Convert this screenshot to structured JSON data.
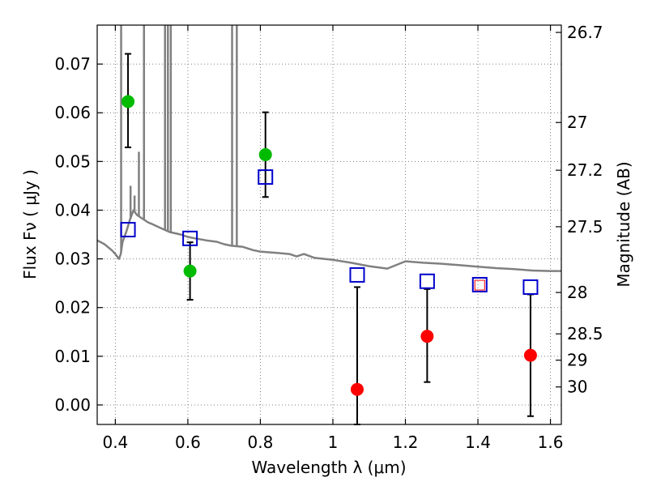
{
  "chart_data": {
    "type": "scatter",
    "title": "",
    "xlabel": "Wavelength  λ (μm)",
    "ylabel": "Flux  Fν  ( μJy )",
    "ylabel_right": "Magnitude (AB)",
    "xlim": [
      0.35,
      1.63
    ],
    "ylim": [
      -0.004,
      0.078
    ],
    "x_ticks": [
      0.4,
      0.6,
      0.8,
      1.0,
      1.2,
      1.4,
      1.6
    ],
    "x_tick_labels": [
      "0.4",
      "0.6",
      "0.8",
      "1",
      "1.2",
      "1.4",
      "1.6"
    ],
    "y_ticks": [
      0.0,
      0.01,
      0.02,
      0.03,
      0.04,
      0.05,
      0.06,
      0.07
    ],
    "y_tick_labels": [
      "0.00",
      "0.01",
      "0.02",
      "0.03",
      "0.04",
      "0.05",
      "0.06",
      "0.07"
    ],
    "right_axis_ticks": [
      {
        "label": "26.7",
        "flux": 0.0765
      },
      {
        "label": "27",
        "flux": 0.058
      },
      {
        "label": "27.2",
        "flux": 0.0482
      },
      {
        "label": "27.5",
        "flux": 0.0366
      },
      {
        "label": "28",
        "flux": 0.0231
      },
      {
        "label": "28.5",
        "flux": 0.0146
      },
      {
        "label": "29",
        "flux": 0.0092
      },
      {
        "label": "30",
        "flux": 0.0037
      }
    ],
    "grid": true,
    "series": [
      {
        "marker": "circle",
        "color": "#00bb00",
        "points": [
          {
            "x": 0.435,
            "y": 0.0623,
            "ylo": 0.0529,
            "yhi": 0.0721
          },
          {
            "x": 0.606,
            "y": 0.0275,
            "ylo": 0.0216,
            "yhi": 0.0334
          },
          {
            "x": 0.814,
            "y": 0.0514,
            "ylo": 0.0427,
            "yhi": 0.0601
          }
        ]
      },
      {
        "marker": "circle",
        "color": "#ff0000",
        "points": [
          {
            "x": 1.067,
            "y": 0.0032,
            "ylo": -0.004,
            "yhi": 0.0242
          },
          {
            "x": 1.26,
            "y": 0.0141,
            "ylo": 0.0047,
            "yhi": 0.0238
          },
          {
            "x": 1.545,
            "y": 0.0102,
            "ylo": -0.0023,
            "yhi": 0.0227
          }
        ]
      },
      {
        "marker": "open-square",
        "color": "#0000cc",
        "points": [
          {
            "x": 0.435,
            "y": 0.036
          },
          {
            "x": 0.606,
            "y": 0.0342
          },
          {
            "x": 0.814,
            "y": 0.0468
          },
          {
            "x": 1.067,
            "y": 0.0267
          },
          {
            "x": 1.26,
            "y": 0.0254
          },
          {
            "x": 1.405,
            "y": 0.0247
          },
          {
            "x": 1.545,
            "y": 0.0242
          }
        ]
      },
      {
        "marker": "open-square-small",
        "color": "#ff0000",
        "points": [
          {
            "x": 1.405,
            "y": 0.0246
          }
        ]
      }
    ],
    "sed_color": "#808080",
    "sed_continuum": [
      [
        0.35,
        0.0338
      ],
      [
        0.37,
        0.033
      ],
      [
        0.39,
        0.0318
      ],
      [
        0.4,
        0.031
      ],
      [
        0.41,
        0.03
      ],
      [
        0.415,
        0.031
      ],
      [
        0.42,
        0.0335
      ],
      [
        0.43,
        0.0355
      ],
      [
        0.44,
        0.038
      ],
      [
        0.45,
        0.04
      ],
      [
        0.46,
        0.039
      ],
      [
        0.47,
        0.0385
      ],
      [
        0.48,
        0.038
      ],
      [
        0.49,
        0.0375
      ],
      [
        0.5,
        0.0372
      ],
      [
        0.52,
        0.0365
      ],
      [
        0.55,
        0.0355
      ],
      [
        0.58,
        0.035
      ],
      [
        0.6,
        0.0345
      ],
      [
        0.62,
        0.0342
      ],
      [
        0.65,
        0.0338
      ],
      [
        0.68,
        0.0335
      ],
      [
        0.7,
        0.033
      ],
      [
        0.72,
        0.0327
      ],
      [
        0.75,
        0.0325
      ],
      [
        0.78,
        0.0318
      ],
      [
        0.8,
        0.0315
      ],
      [
        0.85,
        0.0312
      ],
      [
        0.88,
        0.031
      ],
      [
        0.9,
        0.0305
      ],
      [
        0.92,
        0.031
      ],
      [
        0.95,
        0.0302
      ],
      [
        1.0,
        0.0298
      ],
      [
        1.05,
        0.0292
      ],
      [
        1.1,
        0.0285
      ],
      [
        1.15,
        0.028
      ],
      [
        1.2,
        0.0295
      ],
      [
        1.25,
        0.0292
      ],
      [
        1.3,
        0.029
      ],
      [
        1.35,
        0.0287
      ],
      [
        1.4,
        0.0284
      ],
      [
        1.45,
        0.0281
      ],
      [
        1.5,
        0.0279
      ],
      [
        1.55,
        0.0276
      ],
      [
        1.6,
        0.0275
      ],
      [
        1.63,
        0.0275
      ]
    ],
    "sed_spikes": [
      {
        "x": 0.416,
        "top": 0.078
      },
      {
        "x": 0.479,
        "top": 0.078
      },
      {
        "x": 0.537,
        "top": 0.078
      },
      {
        "x": 0.545,
        "top": 0.078
      },
      {
        "x": 0.553,
        "top": 0.078
      },
      {
        "x": 0.722,
        "top": 0.078
      },
      {
        "x": 0.735,
        "top": 0.078
      },
      {
        "x": 0.442,
        "top": 0.045
      },
      {
        "x": 0.453,
        "top": 0.043
      },
      {
        "x": 0.465,
        "top": 0.052
      }
    ]
  }
}
